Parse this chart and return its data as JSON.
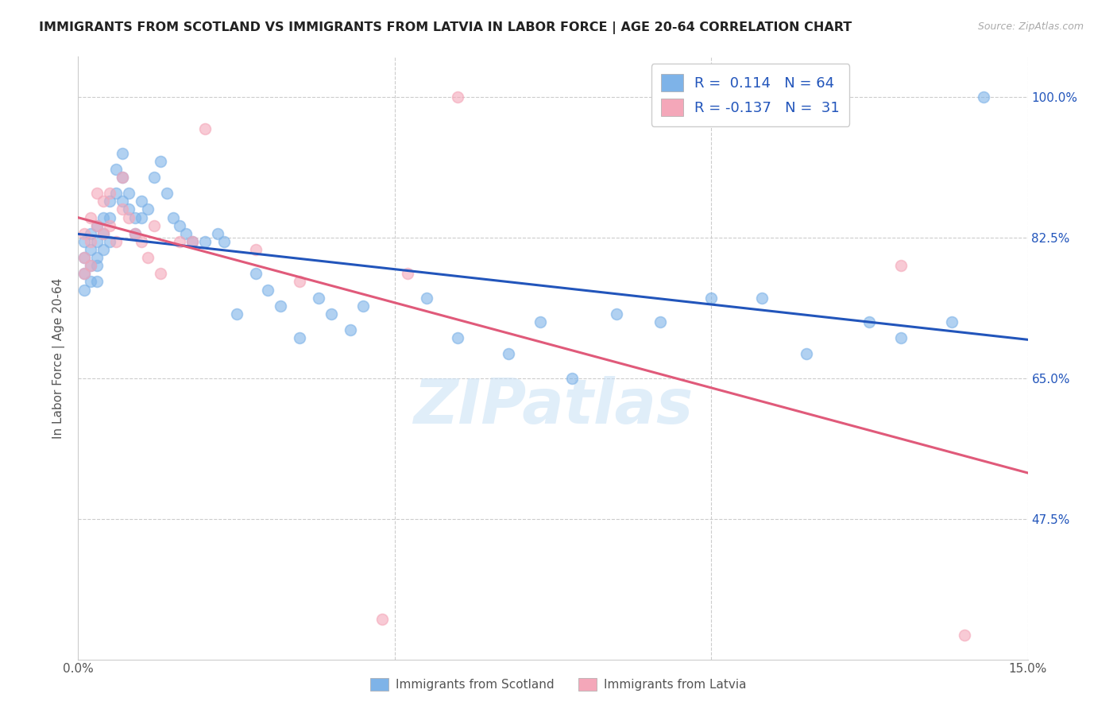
{
  "title": "IMMIGRANTS FROM SCOTLAND VS IMMIGRANTS FROM LATVIA IN LABOR FORCE | AGE 20-64 CORRELATION CHART",
  "source": "Source: ZipAtlas.com",
  "ylabel": "In Labor Force | Age 20-64",
  "ytick_labels": [
    "100.0%",
    "82.5%",
    "65.0%",
    "47.5%"
  ],
  "ytick_values": [
    1.0,
    0.825,
    0.65,
    0.475
  ],
  "xmin": 0.0,
  "xmax": 0.15,
  "ymin": 0.3,
  "ymax": 1.05,
  "legend_r_scotland": "0.114",
  "legend_n_scotland": "64",
  "legend_r_latvia": "-0.137",
  "legend_n_latvia": "31",
  "scotland_color": "#7EB3E8",
  "latvia_color": "#F4A7B9",
  "trendline_scotland_color": "#2255BB",
  "trendline_latvia_color": "#E05A7A",
  "watermark": "ZIPatlas",
  "scotland_x": [
    0.001,
    0.001,
    0.001,
    0.001,
    0.002,
    0.002,
    0.002,
    0.002,
    0.003,
    0.003,
    0.003,
    0.003,
    0.003,
    0.004,
    0.004,
    0.004,
    0.005,
    0.005,
    0.005,
    0.006,
    0.006,
    0.007,
    0.007,
    0.007,
    0.008,
    0.008,
    0.009,
    0.009,
    0.01,
    0.01,
    0.011,
    0.012,
    0.013,
    0.014,
    0.015,
    0.016,
    0.017,
    0.018,
    0.02,
    0.022,
    0.023,
    0.025,
    0.028,
    0.03,
    0.032,
    0.035,
    0.038,
    0.04,
    0.043,
    0.045,
    0.055,
    0.06,
    0.068,
    0.073,
    0.078,
    0.085,
    0.092,
    0.1,
    0.108,
    0.115,
    0.125,
    0.13,
    0.138,
    0.143
  ],
  "scotland_y": [
    0.82,
    0.8,
    0.78,
    0.76,
    0.83,
    0.81,
    0.79,
    0.77,
    0.84,
    0.82,
    0.8,
    0.79,
    0.77,
    0.85,
    0.83,
    0.81,
    0.87,
    0.85,
    0.82,
    0.91,
    0.88,
    0.93,
    0.9,
    0.87,
    0.88,
    0.86,
    0.85,
    0.83,
    0.87,
    0.85,
    0.86,
    0.9,
    0.92,
    0.88,
    0.85,
    0.84,
    0.83,
    0.82,
    0.82,
    0.83,
    0.82,
    0.73,
    0.78,
    0.76,
    0.74,
    0.7,
    0.75,
    0.73,
    0.71,
    0.74,
    0.75,
    0.7,
    0.68,
    0.72,
    0.65,
    0.73,
    0.72,
    0.75,
    0.75,
    0.68,
    0.72,
    0.7,
    0.72,
    1.0
  ],
  "latvia_x": [
    0.001,
    0.001,
    0.001,
    0.002,
    0.002,
    0.002,
    0.003,
    0.003,
    0.004,
    0.004,
    0.005,
    0.005,
    0.006,
    0.007,
    0.007,
    0.008,
    0.009,
    0.01,
    0.011,
    0.012,
    0.013,
    0.016,
    0.018,
    0.02,
    0.028,
    0.035,
    0.048,
    0.052,
    0.06,
    0.13,
    0.14
  ],
  "latvia_y": [
    0.83,
    0.8,
    0.78,
    0.85,
    0.82,
    0.79,
    0.88,
    0.84,
    0.87,
    0.83,
    0.88,
    0.84,
    0.82,
    0.9,
    0.86,
    0.85,
    0.83,
    0.82,
    0.8,
    0.84,
    0.78,
    0.82,
    0.82,
    0.96,
    0.81,
    0.77,
    0.35,
    0.78,
    1.0,
    0.79,
    0.33
  ]
}
